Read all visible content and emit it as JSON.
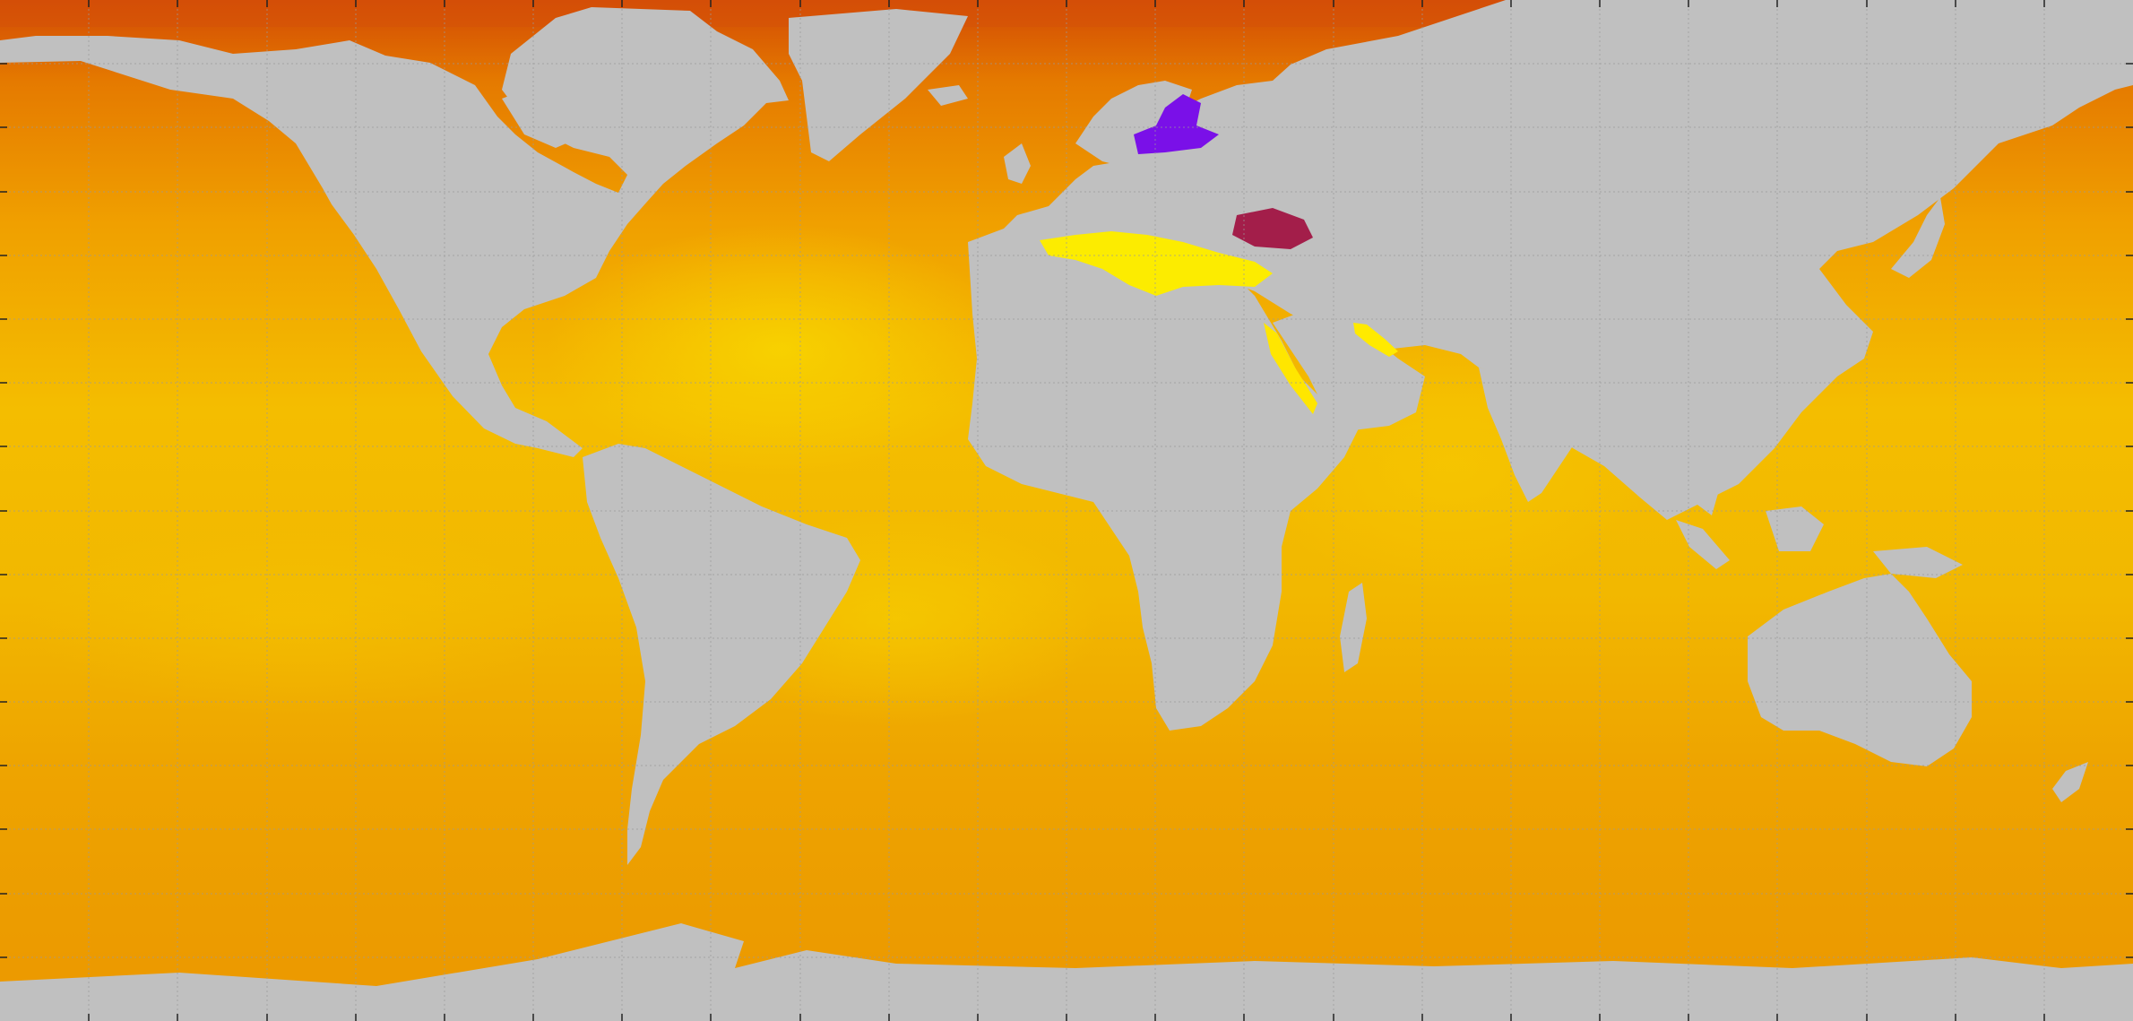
{
  "map": {
    "projection": "equirectangular",
    "graticule": true,
    "colors": {
      "land": "#c0c0c0",
      "ocean_base": "#f0a400",
      "ocean_warm": "#f7d000",
      "ocean_polar": "#e56a00",
      "arctic_edge": "#c52a0a",
      "mediterranean": "#ffee00",
      "red_sea": "#ffe600",
      "persian_gulf": "#ffea00",
      "baltic_sea": "#7a10e8",
      "black_sea": "#a3204a",
      "grid_line": "#9a9a9a",
      "tick": "#222222"
    }
  }
}
